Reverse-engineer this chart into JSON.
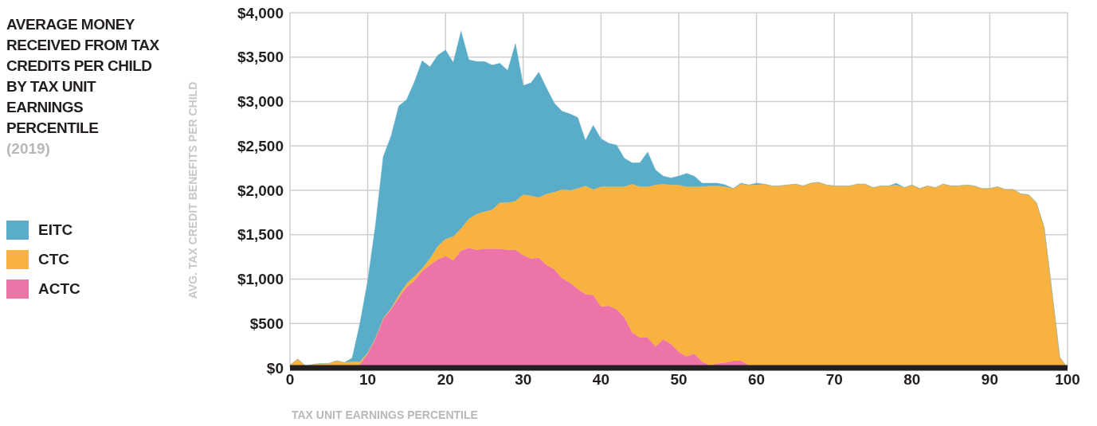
{
  "chart_data": {
    "type": "area",
    "title": "AVERAGE MONEY RECEIVED FROM TAX CREDITS PER CHILD BY TAX UNIT EARNINGS PERCENTILE",
    "subtitle": "(2019)",
    "xlabel": "TAX UNIT EARNINGS PERCENTILE",
    "ylabel": "AVG. TAX CREDIT BENEFITS PER CHILD",
    "stacked": true,
    "legend": "left",
    "grid": true,
    "x": [
      0,
      1,
      2,
      3,
      4,
      5,
      6,
      7,
      8,
      9,
      10,
      11,
      12,
      13,
      14,
      15,
      16,
      17,
      18,
      19,
      20,
      21,
      22,
      23,
      24,
      25,
      26,
      27,
      28,
      29,
      30,
      31,
      32,
      33,
      34,
      35,
      36,
      37,
      38,
      39,
      40,
      41,
      42,
      43,
      44,
      45,
      46,
      47,
      48,
      49,
      50,
      51,
      52,
      53,
      54,
      55,
      56,
      57,
      58,
      59,
      60,
      61,
      62,
      63,
      64,
      65,
      66,
      67,
      68,
      69,
      70,
      71,
      72,
      73,
      74,
      75,
      76,
      77,
      78,
      79,
      80,
      81,
      82,
      83,
      84,
      85,
      86,
      87,
      88,
      89,
      90,
      91,
      92,
      93,
      94,
      95,
      96,
      97,
      98,
      99,
      100
    ],
    "xlim": [
      0,
      100
    ],
    "xticks": [
      0,
      10,
      20,
      30,
      40,
      50,
      60,
      70,
      80,
      90,
      100
    ],
    "ylim": [
      0,
      4000
    ],
    "yticks": [
      {
        "value": 0,
        "label": "$0"
      },
      {
        "value": 500,
        "label": "$500"
      },
      {
        "value": 1000,
        "label": "$1,000"
      },
      {
        "value": 1500,
        "label": "$1,500"
      },
      {
        "value": 2000,
        "label": "$2,000"
      },
      {
        "value": 2500,
        "label": "$2,500"
      },
      {
        "value": 3000,
        "label": "$3,000"
      },
      {
        "value": 3500,
        "label": "$3,500"
      },
      {
        "value": 4000,
        "label": "$4,000"
      }
    ],
    "series": [
      {
        "name": "ACTC",
        "color": "#ec74a8",
        "values": [
          0,
          0,
          0,
          0,
          0,
          0,
          0,
          0,
          0,
          40,
          160,
          330,
          550,
          660,
          790,
          910,
          980,
          1090,
          1160,
          1220,
          1260,
          1210,
          1320,
          1350,
          1330,
          1340,
          1340,
          1340,
          1330,
          1330,
          1270,
          1230,
          1240,
          1160,
          1110,
          1010,
          960,
          890,
          830,
          820,
          690,
          700,
          660,
          570,
          400,
          340,
          340,
          240,
          320,
          270,
          180,
          130,
          160,
          70,
          30,
          50,
          60,
          80,
          80,
          30,
          20,
          0,
          0,
          0,
          0,
          0,
          0,
          20,
          20,
          0,
          0,
          0,
          0,
          0,
          0,
          0,
          0,
          0,
          0,
          0,
          0,
          0,
          0,
          0,
          0,
          30,
          0,
          0,
          0,
          0,
          0,
          0,
          0,
          0,
          0,
          0,
          0,
          0,
          0,
          0,
          0
        ]
      },
      {
        "name": "CTC",
        "color": "#f8b240",
        "values": [
          30,
          100,
          20,
          40,
          50,
          50,
          80,
          60,
          70,
          30,
          10,
          10,
          10,
          10,
          30,
          40,
          50,
          30,
          70,
          150,
          190,
          270,
          250,
          330,
          400,
          420,
          440,
          520,
          530,
          550,
          680,
          710,
          680,
          800,
          870,
          1000,
          1040,
          1130,
          1220,
          1190,
          1350,
          1340,
          1380,
          1470,
          1670,
          1700,
          1700,
          1820,
          1750,
          1790,
          1880,
          1910,
          1880,
          1970,
          2020,
          2000,
          1980,
          1940,
          1990,
          2030,
          2040,
          2070,
          2050,
          2050,
          2060,
          2070,
          2050,
          2060,
          2070,
          2060,
          2050,
          2050,
          2050,
          2070,
          2070,
          2030,
          2050,
          2050,
          2060,
          2030,
          2060,
          2020,
          2050,
          2030,
          2070,
          2020,
          2050,
          2060,
          2050,
          2020,
          2020,
          2040,
          2010,
          2010,
          1960,
          1950,
          1860,
          1580,
          860,
          120,
          0
        ]
      },
      {
        "name": "EITC",
        "color": "#5aadc9",
        "values": [
          0,
          0,
          0,
          0,
          0,
          0,
          0,
          0,
          40,
          430,
          810,
          1270,
          1820,
          1940,
          2130,
          2070,
          2190,
          2340,
          2160,
          2150,
          2130,
          1960,
          2220,
          1790,
          1720,
          1690,
          1630,
          1570,
          1490,
          1770,
          1230,
          1270,
          1410,
          1190,
          1000,
          880,
          860,
          800,
          510,
          720,
          540,
          490,
          470,
          320,
          240,
          270,
          390,
          170,
          90,
          80,
          100,
          150,
          120,
          40,
          30,
          30,
          20,
          0,
          10,
          0,
          20,
          0,
          0,
          0,
          0,
          0,
          0,
          0,
          0,
          0,
          0,
          0,
          0,
          0,
          0,
          0,
          0,
          0,
          20,
          0,
          0,
          0,
          0,
          0,
          0,
          0,
          0,
          0,
          0,
          0,
          0,
          0,
          0,
          0,
          0,
          0,
          0,
          0,
          0,
          0,
          0
        ]
      }
    ]
  }
}
